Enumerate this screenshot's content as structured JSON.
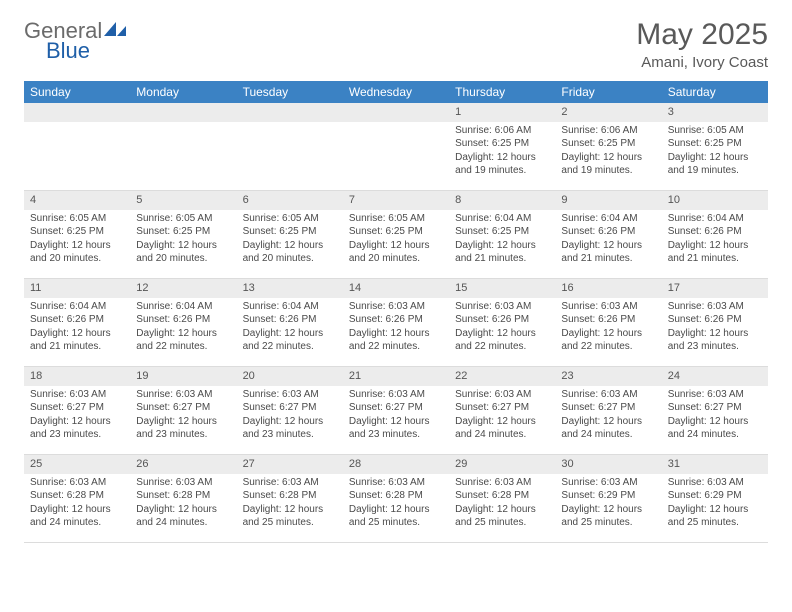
{
  "logo": {
    "word1": "General",
    "word2": "Blue"
  },
  "title": "May 2025",
  "subtitle": "Amani, Ivory Coast",
  "colors": {
    "header_blue": "#3b82c4",
    "logo_gray": "#6b6b6b",
    "logo_blue": "#1f5fa8",
    "daynum_bg": "#ececec",
    "border": "#dcdcdc"
  },
  "weekdays": [
    "Sunday",
    "Monday",
    "Tuesday",
    "Wednesday",
    "Thursday",
    "Friday",
    "Saturday"
  ],
  "cells": [
    {
      "day": "",
      "sunrise": "",
      "sunset": "",
      "daylight": ""
    },
    {
      "day": "",
      "sunrise": "",
      "sunset": "",
      "daylight": ""
    },
    {
      "day": "",
      "sunrise": "",
      "sunset": "",
      "daylight": ""
    },
    {
      "day": "",
      "sunrise": "",
      "sunset": "",
      "daylight": ""
    },
    {
      "day": "1",
      "sunrise": "Sunrise: 6:06 AM",
      "sunset": "Sunset: 6:25 PM",
      "daylight": "Daylight: 12 hours and 19 minutes."
    },
    {
      "day": "2",
      "sunrise": "Sunrise: 6:06 AM",
      "sunset": "Sunset: 6:25 PM",
      "daylight": "Daylight: 12 hours and 19 minutes."
    },
    {
      "day": "3",
      "sunrise": "Sunrise: 6:05 AM",
      "sunset": "Sunset: 6:25 PM",
      "daylight": "Daylight: 12 hours and 19 minutes."
    },
    {
      "day": "4",
      "sunrise": "Sunrise: 6:05 AM",
      "sunset": "Sunset: 6:25 PM",
      "daylight": "Daylight: 12 hours and 20 minutes."
    },
    {
      "day": "5",
      "sunrise": "Sunrise: 6:05 AM",
      "sunset": "Sunset: 6:25 PM",
      "daylight": "Daylight: 12 hours and 20 minutes."
    },
    {
      "day": "6",
      "sunrise": "Sunrise: 6:05 AM",
      "sunset": "Sunset: 6:25 PM",
      "daylight": "Daylight: 12 hours and 20 minutes."
    },
    {
      "day": "7",
      "sunrise": "Sunrise: 6:05 AM",
      "sunset": "Sunset: 6:25 PM",
      "daylight": "Daylight: 12 hours and 20 minutes."
    },
    {
      "day": "8",
      "sunrise": "Sunrise: 6:04 AM",
      "sunset": "Sunset: 6:25 PM",
      "daylight": "Daylight: 12 hours and 21 minutes."
    },
    {
      "day": "9",
      "sunrise": "Sunrise: 6:04 AM",
      "sunset": "Sunset: 6:26 PM",
      "daylight": "Daylight: 12 hours and 21 minutes."
    },
    {
      "day": "10",
      "sunrise": "Sunrise: 6:04 AM",
      "sunset": "Sunset: 6:26 PM",
      "daylight": "Daylight: 12 hours and 21 minutes."
    },
    {
      "day": "11",
      "sunrise": "Sunrise: 6:04 AM",
      "sunset": "Sunset: 6:26 PM",
      "daylight": "Daylight: 12 hours and 21 minutes."
    },
    {
      "day": "12",
      "sunrise": "Sunrise: 6:04 AM",
      "sunset": "Sunset: 6:26 PM",
      "daylight": "Daylight: 12 hours and 22 minutes."
    },
    {
      "day": "13",
      "sunrise": "Sunrise: 6:04 AM",
      "sunset": "Sunset: 6:26 PM",
      "daylight": "Daylight: 12 hours and 22 minutes."
    },
    {
      "day": "14",
      "sunrise": "Sunrise: 6:03 AM",
      "sunset": "Sunset: 6:26 PM",
      "daylight": "Daylight: 12 hours and 22 minutes."
    },
    {
      "day": "15",
      "sunrise": "Sunrise: 6:03 AM",
      "sunset": "Sunset: 6:26 PM",
      "daylight": "Daylight: 12 hours and 22 minutes."
    },
    {
      "day": "16",
      "sunrise": "Sunrise: 6:03 AM",
      "sunset": "Sunset: 6:26 PM",
      "daylight": "Daylight: 12 hours and 22 minutes."
    },
    {
      "day": "17",
      "sunrise": "Sunrise: 6:03 AM",
      "sunset": "Sunset: 6:26 PM",
      "daylight": "Daylight: 12 hours and 23 minutes."
    },
    {
      "day": "18",
      "sunrise": "Sunrise: 6:03 AM",
      "sunset": "Sunset: 6:27 PM",
      "daylight": "Daylight: 12 hours and 23 minutes."
    },
    {
      "day": "19",
      "sunrise": "Sunrise: 6:03 AM",
      "sunset": "Sunset: 6:27 PM",
      "daylight": "Daylight: 12 hours and 23 minutes."
    },
    {
      "day": "20",
      "sunrise": "Sunrise: 6:03 AM",
      "sunset": "Sunset: 6:27 PM",
      "daylight": "Daylight: 12 hours and 23 minutes."
    },
    {
      "day": "21",
      "sunrise": "Sunrise: 6:03 AM",
      "sunset": "Sunset: 6:27 PM",
      "daylight": "Daylight: 12 hours and 23 minutes."
    },
    {
      "day": "22",
      "sunrise": "Sunrise: 6:03 AM",
      "sunset": "Sunset: 6:27 PM",
      "daylight": "Daylight: 12 hours and 24 minutes."
    },
    {
      "day": "23",
      "sunrise": "Sunrise: 6:03 AM",
      "sunset": "Sunset: 6:27 PM",
      "daylight": "Daylight: 12 hours and 24 minutes."
    },
    {
      "day": "24",
      "sunrise": "Sunrise: 6:03 AM",
      "sunset": "Sunset: 6:27 PM",
      "daylight": "Daylight: 12 hours and 24 minutes."
    },
    {
      "day": "25",
      "sunrise": "Sunrise: 6:03 AM",
      "sunset": "Sunset: 6:28 PM",
      "daylight": "Daylight: 12 hours and 24 minutes."
    },
    {
      "day": "26",
      "sunrise": "Sunrise: 6:03 AM",
      "sunset": "Sunset: 6:28 PM",
      "daylight": "Daylight: 12 hours and 24 minutes."
    },
    {
      "day": "27",
      "sunrise": "Sunrise: 6:03 AM",
      "sunset": "Sunset: 6:28 PM",
      "daylight": "Daylight: 12 hours and 25 minutes."
    },
    {
      "day": "28",
      "sunrise": "Sunrise: 6:03 AM",
      "sunset": "Sunset: 6:28 PM",
      "daylight": "Daylight: 12 hours and 25 minutes."
    },
    {
      "day": "29",
      "sunrise": "Sunrise: 6:03 AM",
      "sunset": "Sunset: 6:28 PM",
      "daylight": "Daylight: 12 hours and 25 minutes."
    },
    {
      "day": "30",
      "sunrise": "Sunrise: 6:03 AM",
      "sunset": "Sunset: 6:29 PM",
      "daylight": "Daylight: 12 hours and 25 minutes."
    },
    {
      "day": "31",
      "sunrise": "Sunrise: 6:03 AM",
      "sunset": "Sunset: 6:29 PM",
      "daylight": "Daylight: 12 hours and 25 minutes."
    }
  ]
}
